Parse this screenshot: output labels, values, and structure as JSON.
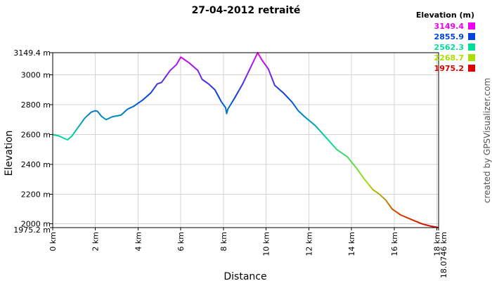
{
  "chart_data": {
    "type": "line",
    "title": "27-04-2012 retraité",
    "xlabel": "Distance",
    "ylabel": "Elevation",
    "x_unit": "km",
    "y_unit": "m",
    "xlim": [
      0,
      18.0746
    ],
    "ylim": [
      1975.2,
      3149.4
    ],
    "x_ticks": [
      {
        "v": 0,
        "label": "0 km"
      },
      {
        "v": 2,
        "label": "2 km"
      },
      {
        "v": 4,
        "label": "4 km"
      },
      {
        "v": 6,
        "label": "6 km"
      },
      {
        "v": 8,
        "label": "8 km"
      },
      {
        "v": 10,
        "label": "10 km"
      },
      {
        "v": 12,
        "label": "12 km"
      },
      {
        "v": 14,
        "label": "14 km"
      },
      {
        "v": 16,
        "label": "16 km"
      },
      {
        "v": 18,
        "label": "18 km"
      },
      {
        "v": 18.0746,
        "label": "18.0746 km"
      }
    ],
    "y_ticks": [
      {
        "v": 1975.2,
        "label": "1975.2 m"
      },
      {
        "v": 2000,
        "label": "2000 m"
      },
      {
        "v": 2200,
        "label": "2200 m"
      },
      {
        "v": 2400,
        "label": "2400 m"
      },
      {
        "v": 2600,
        "label": "2600 m"
      },
      {
        "v": 2800,
        "label": "2800 m"
      },
      {
        "v": 3000,
        "label": "3000 m"
      },
      {
        "v": 3149.4,
        "label": "3149.4 m"
      }
    ],
    "grid": true,
    "legend": {
      "title": "Elevation (m)",
      "placement": "top-right",
      "entries": [
        {
          "label": "3149.4",
          "color": "#ee00ee"
        },
        {
          "label": "2855.9",
          "color": "#0044dd"
        },
        {
          "label": "2562.3",
          "color": "#00dd99"
        },
        {
          "label": "2268.7",
          "color": "#aadd00"
        },
        {
          "label": "1975.2",
          "color": "#dd0000"
        }
      ]
    },
    "series": [
      {
        "values": [
          [
            0,
            2600
          ],
          [
            0.3,
            2590
          ],
          [
            0.6,
            2570
          ],
          [
            0.7,
            2565
          ],
          [
            0.9,
            2590
          ],
          [
            1.2,
            2650
          ],
          [
            1.5,
            2710
          ],
          [
            1.8,
            2750
          ],
          [
            2.0,
            2760
          ],
          [
            2.1,
            2755
          ],
          [
            2.3,
            2720
          ],
          [
            2.5,
            2700
          ],
          [
            2.8,
            2720
          ],
          [
            3.2,
            2730
          ],
          [
            3.5,
            2770
          ],
          [
            3.8,
            2790
          ],
          [
            4.2,
            2830
          ],
          [
            4.6,
            2880
          ],
          [
            4.9,
            2940
          ],
          [
            5.1,
            2950
          ],
          [
            5.5,
            3030
          ],
          [
            5.8,
            3070
          ],
          [
            6.0,
            3120
          ],
          [
            6.2,
            3100
          ],
          [
            6.4,
            3080
          ],
          [
            6.8,
            3030
          ],
          [
            7.0,
            2970
          ],
          [
            7.3,
            2940
          ],
          [
            7.6,
            2900
          ],
          [
            7.9,
            2820
          ],
          [
            8.1,
            2780
          ],
          [
            8.15,
            2740
          ],
          [
            8.2,
            2770
          ],
          [
            8.5,
            2840
          ],
          [
            8.9,
            2940
          ],
          [
            9.3,
            3060
          ],
          [
            9.6,
            3149.4
          ],
          [
            9.8,
            3100
          ],
          [
            10.1,
            3040
          ],
          [
            10.4,
            2930
          ],
          [
            10.8,
            2880
          ],
          [
            11.2,
            2820
          ],
          [
            11.5,
            2760
          ],
          [
            11.8,
            2720
          ],
          [
            12.3,
            2660
          ],
          [
            12.8,
            2580
          ],
          [
            13.3,
            2500
          ],
          [
            13.8,
            2450
          ],
          [
            14.2,
            2380
          ],
          [
            14.6,
            2300
          ],
          [
            15.0,
            2230
          ],
          [
            15.3,
            2200
          ],
          [
            15.6,
            2160
          ],
          [
            15.9,
            2100
          ],
          [
            16.3,
            2060
          ],
          [
            16.8,
            2030
          ],
          [
            17.3,
            2000
          ],
          [
            17.7,
            1985
          ],
          [
            18.0746,
            1975.2
          ]
        ]
      }
    ]
  },
  "credit": "created by GPSVisualizer.com"
}
